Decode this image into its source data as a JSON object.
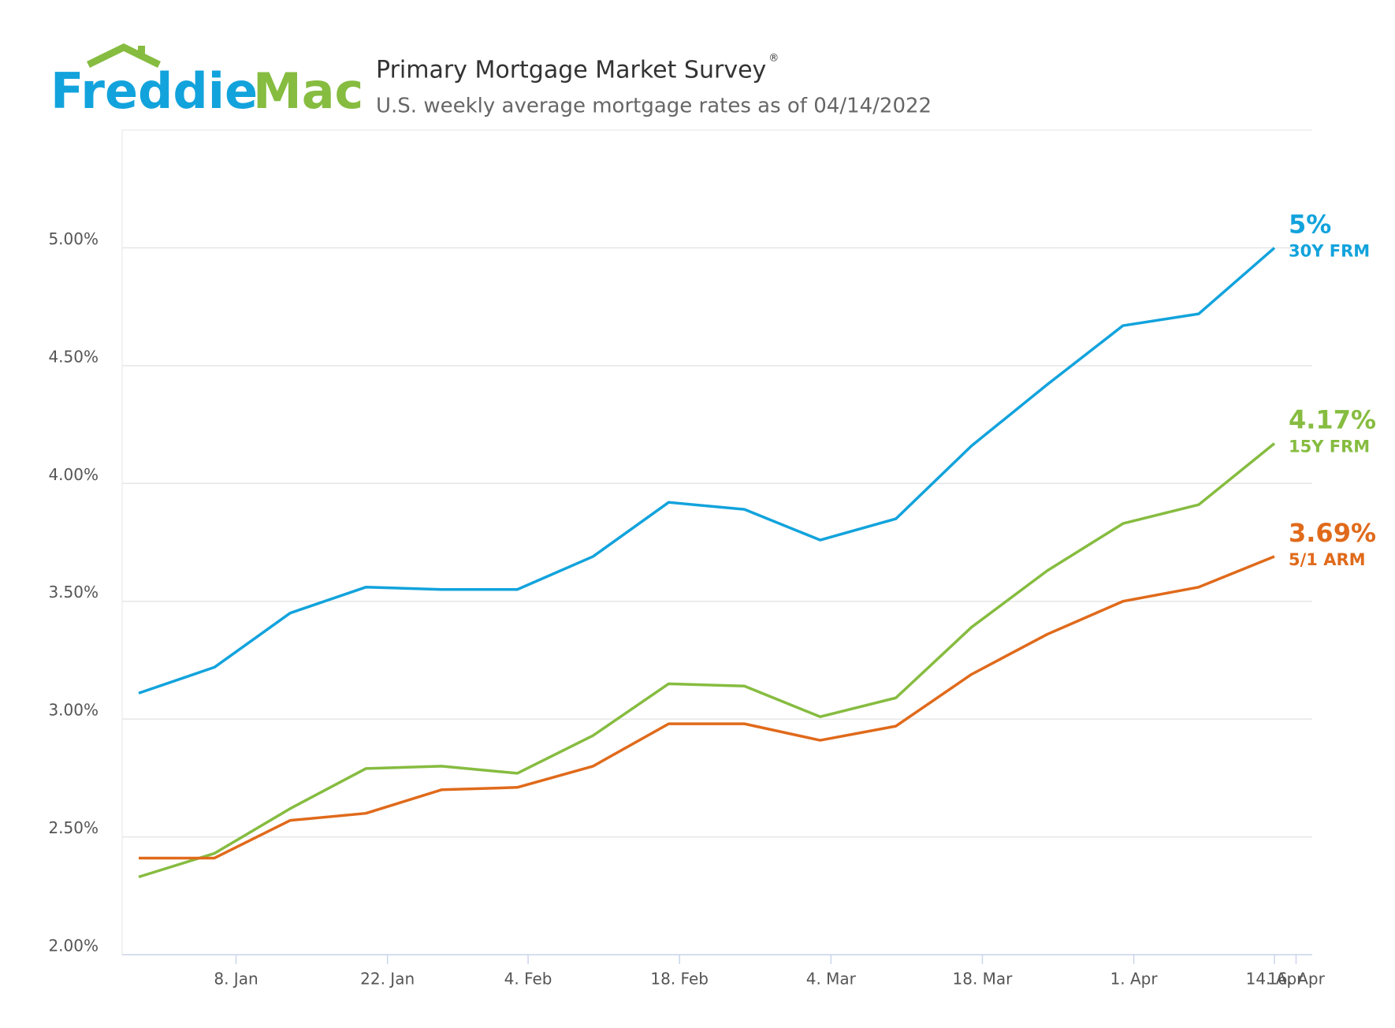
{
  "logo": {
    "first": "Freddie",
    "second": "Mac"
  },
  "chart_data": {
    "type": "line",
    "title": "Primary Mortgage Market Survey",
    "title_mark": "®",
    "subtitle": "U.S. weekly average mortgage rates as of 04/14/2022",
    "x": [
      -1,
      6,
      13,
      20,
      27,
      34,
      41,
      48,
      55,
      62,
      69,
      76,
      83,
      90,
      97,
      104
    ],
    "xlim": [
      -1,
      104
    ],
    "xticks": [
      {
        "value": 8,
        "label": "8. Jan"
      },
      {
        "value": 22,
        "label": "22. Jan"
      },
      {
        "value": 35,
        "label": "4. Feb"
      },
      {
        "value": 49,
        "label": "18. Feb"
      },
      {
        "value": 63,
        "label": "4. Mar"
      },
      {
        "value": 77,
        "label": "18. Mar"
      },
      {
        "value": 91,
        "label": "1. Apr"
      },
      {
        "value": 104,
        "label": "14. Apr"
      },
      {
        "value": 106,
        "label": "16. Apr"
      }
    ],
    "ylim": [
      2.0,
      5.5
    ],
    "yticks": [
      {
        "value": 2.0,
        "label": "2.00%"
      },
      {
        "value": 2.5,
        "label": "2.50%"
      },
      {
        "value": 3.0,
        "label": "3.00%"
      },
      {
        "value": 3.5,
        "label": "3.50%"
      },
      {
        "value": 4.0,
        "label": "4.00%"
      },
      {
        "value": 4.5,
        "label": "4.50%"
      },
      {
        "value": 5.0,
        "label": "5.00%"
      }
    ],
    "grid": true,
    "series": [
      {
        "name": "30Y FRM",
        "color": "#12a3dc",
        "values": [
          3.11,
          3.22,
          3.45,
          3.56,
          3.55,
          3.55,
          3.69,
          3.92,
          3.89,
          3.76,
          3.85,
          4.16,
          4.42,
          4.67,
          4.72,
          5.0
        ],
        "value_labels": [
          null,
          null,
          null,
          null,
          null,
          null,
          null,
          null,
          null,
          null,
          null,
          null,
          null,
          null,
          null,
          "5%"
        ]
      },
      {
        "name": "15Y FRM",
        "color": "#86bc40",
        "values": [
          2.33,
          2.43,
          2.62,
          2.79,
          2.8,
          2.77,
          2.93,
          3.15,
          3.14,
          3.01,
          3.09,
          3.39,
          3.63,
          3.83,
          3.91,
          4.17
        ],
        "value_labels": [
          null,
          null,
          null,
          null,
          null,
          null,
          null,
          null,
          null,
          null,
          null,
          null,
          null,
          null,
          null,
          "4.17%"
        ]
      },
      {
        "name": "5/1 ARM",
        "color": "#e06a1b",
        "values": [
          2.41,
          2.41,
          2.57,
          2.6,
          2.7,
          2.71,
          2.8,
          2.98,
          2.98,
          2.91,
          2.97,
          3.19,
          3.36,
          3.5,
          3.56,
          3.69
        ],
        "value_labels": [
          null,
          null,
          null,
          null,
          null,
          null,
          null,
          null,
          null,
          null,
          null,
          null,
          null,
          null,
          null,
          "3.69%"
        ]
      }
    ]
  }
}
